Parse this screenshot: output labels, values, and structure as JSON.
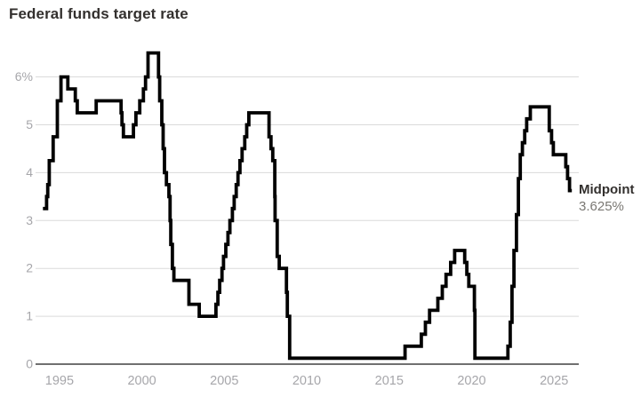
{
  "title": "Federal funds target rate",
  "annotation": {
    "label": "Midpoint",
    "value": "3.625%"
  },
  "colors": {
    "background": "#ffffff",
    "line": "#000000",
    "grid": "#dadada",
    "axis": "#404040",
    "tick_text": "#a6a6aa",
    "title_text": "#33302e",
    "annotation_label_text": "#33302e",
    "annotation_value_text": "#7a7873"
  },
  "chart_data": {
    "type": "line",
    "line_style": "step-after",
    "title": "Federal funds target rate",
    "xlabel": "",
    "ylabel": "",
    "grid": true,
    "legend": false,
    "xlim": [
      1993.55,
      2026.5
    ],
    "ylim": [
      0,
      6.87
    ],
    "x_ticks": [
      1995,
      2000,
      2005,
      2010,
      2015,
      2020,
      2025
    ],
    "y_ticks": [
      {
        "value": 0,
        "label": "0"
      },
      {
        "value": 1,
        "label": "1"
      },
      {
        "value": 2,
        "label": "2"
      },
      {
        "value": 3,
        "label": "3"
      },
      {
        "value": 4,
        "label": "4"
      },
      {
        "value": 5,
        "label": "5"
      },
      {
        "value": 6,
        "label": "6%"
      }
    ],
    "x_end": 2026.08,
    "annotation": {
      "label": "Midpoint",
      "value": "3.625%",
      "x": 2026.08,
      "y": 3.625
    },
    "series": [
      {
        "name": "Federal funds target rate (midpoint, %)",
        "points": [
          [
            1994.0,
            3.25
          ],
          [
            1994.22,
            3.5
          ],
          [
            1994.29,
            3.75
          ],
          [
            1994.38,
            4.25
          ],
          [
            1994.62,
            4.75
          ],
          [
            1994.87,
            5.5
          ],
          [
            1995.09,
            6.0
          ],
          [
            1995.51,
            5.75
          ],
          [
            1995.96,
            5.5
          ],
          [
            1996.08,
            5.25
          ],
          [
            1997.23,
            5.5
          ],
          [
            1998.74,
            5.25
          ],
          [
            1998.79,
            5.0
          ],
          [
            1998.88,
            4.75
          ],
          [
            1999.49,
            5.0
          ],
          [
            1999.64,
            5.25
          ],
          [
            1999.87,
            5.5
          ],
          [
            2000.09,
            5.75
          ],
          [
            2000.22,
            6.0
          ],
          [
            2000.37,
            6.5
          ],
          [
            2001.01,
            6.0
          ],
          [
            2001.08,
            5.5
          ],
          [
            2001.21,
            5.0
          ],
          [
            2001.29,
            4.5
          ],
          [
            2001.37,
            4.0
          ],
          [
            2001.49,
            3.75
          ],
          [
            2001.64,
            3.5
          ],
          [
            2001.71,
            3.0
          ],
          [
            2001.75,
            2.5
          ],
          [
            2001.85,
            2.0
          ],
          [
            2001.94,
            1.75
          ],
          [
            2002.85,
            1.25
          ],
          [
            2003.48,
            1.0
          ],
          [
            2004.49,
            1.25
          ],
          [
            2004.61,
            1.5
          ],
          [
            2004.72,
            1.75
          ],
          [
            2004.86,
            2.0
          ],
          [
            2004.95,
            2.25
          ],
          [
            2005.09,
            2.5
          ],
          [
            2005.22,
            2.75
          ],
          [
            2005.34,
            3.0
          ],
          [
            2005.49,
            3.25
          ],
          [
            2005.6,
            3.5
          ],
          [
            2005.72,
            3.75
          ],
          [
            2005.83,
            4.0
          ],
          [
            2005.95,
            4.25
          ],
          [
            2006.08,
            4.5
          ],
          [
            2006.24,
            4.75
          ],
          [
            2006.36,
            5.0
          ],
          [
            2006.49,
            5.25
          ],
          [
            2007.71,
            4.75
          ],
          [
            2007.83,
            4.5
          ],
          [
            2007.94,
            4.25
          ],
          [
            2008.06,
            3.5
          ],
          [
            2008.08,
            3.0
          ],
          [
            2008.21,
            2.25
          ],
          [
            2008.33,
            2.0
          ],
          [
            2008.77,
            1.5
          ],
          [
            2008.82,
            1.0
          ],
          [
            2008.96,
            0.125
          ],
          [
            2015.96,
            0.375
          ],
          [
            2016.95,
            0.625
          ],
          [
            2017.2,
            0.875
          ],
          [
            2017.45,
            1.125
          ],
          [
            2017.95,
            1.375
          ],
          [
            2018.22,
            1.625
          ],
          [
            2018.45,
            1.875
          ],
          [
            2018.73,
            2.125
          ],
          [
            2018.97,
            2.375
          ],
          [
            2019.58,
            2.125
          ],
          [
            2019.71,
            1.875
          ],
          [
            2019.83,
            1.625
          ],
          [
            2020.17,
            1.125
          ],
          [
            2020.2,
            0.125
          ],
          [
            2022.2,
            0.375
          ],
          [
            2022.34,
            0.875
          ],
          [
            2022.45,
            1.625
          ],
          [
            2022.57,
            2.375
          ],
          [
            2022.72,
            3.125
          ],
          [
            2022.84,
            3.875
          ],
          [
            2022.95,
            4.375
          ],
          [
            2023.08,
            4.625
          ],
          [
            2023.22,
            4.875
          ],
          [
            2023.34,
            5.125
          ],
          [
            2023.56,
            5.375
          ],
          [
            2024.71,
            4.875
          ],
          [
            2024.85,
            4.625
          ],
          [
            2024.96,
            4.375
          ],
          [
            2025.71,
            4.125
          ],
          [
            2025.82,
            3.875
          ],
          [
            2025.94,
            3.625
          ]
        ]
      }
    ]
  }
}
